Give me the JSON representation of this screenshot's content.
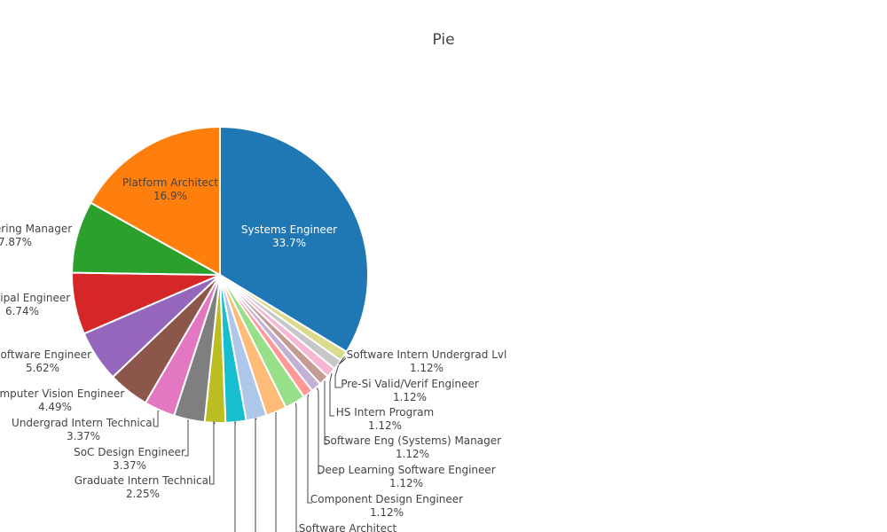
{
  "chart_data": {
    "type": "pie",
    "title": "Pie",
    "slices": [
      {
        "label": "Systems Engineer",
        "percent": "33.7%",
        "value": 33.7,
        "color": "#1f77b4"
      },
      {
        "label": "Software Intern Undergrad Lvl",
        "percent": "1.12%",
        "value": 1.12,
        "color": "#dbdb8d"
      },
      {
        "label": "Pre-Si Valid/Verif Engineer",
        "percent": "1.12%",
        "value": 1.12,
        "color": "#c7c7c7"
      },
      {
        "label": "HS Intern Program",
        "percent": "1.12%",
        "value": 1.12,
        "color": "#f7b6d2"
      },
      {
        "label": "Software Eng (Systems) Manager",
        "percent": "1.12%",
        "value": 1.12,
        "color": "#c49c94"
      },
      {
        "label": "Deep Learning Software Engineer",
        "percent": "1.12%",
        "value": 1.12,
        "color": "#c5b0d5"
      },
      {
        "label": "Component Design Engineer",
        "percent": "1.12%",
        "value": 1.12,
        "color": "#ff9896"
      },
      {
        "label": "Software Architect",
        "percent": "",
        "value": 2.25,
        "color": "#98df8a"
      },
      {
        "label": "",
        "percent": "",
        "value": 2.25,
        "color": "#ffbb78"
      },
      {
        "label": "",
        "percent": "",
        "value": 2.25,
        "color": "#aec7e8"
      },
      {
        "label": "",
        "percent": "",
        "value": 2.25,
        "color": "#17becf"
      },
      {
        "label": "Graduate Intern Technical",
        "percent": "2.25%",
        "value": 2.25,
        "color": "#bcbd22"
      },
      {
        "label": "SoC Design Engineer",
        "percent": "3.37%",
        "value": 3.37,
        "color": "#7f7f7f"
      },
      {
        "label": "Undergrad Intern Technical",
        "percent": "3.37%",
        "value": 3.37,
        "color": "#e377c2"
      },
      {
        "label": "Computer Vision Engineer",
        "percent": "4.49%",
        "value": 4.49,
        "color": "#8c564b"
      },
      {
        "label": "Software Engineer",
        "percent": "5.62%",
        "value": 5.62,
        "color": "#9467bd"
      },
      {
        "label": "Principal Engineer",
        "percent": "6.74%",
        "value": 6.74,
        "color": "#d62728"
      },
      {
        "label": "Engineering Manager",
        "percent": "7.87%",
        "value": 7.87,
        "color": "#2ca02c"
      },
      {
        "label": "Platform Architect",
        "percent": "16.9%",
        "value": 16.9,
        "color": "#ff7f0e"
      }
    ]
  }
}
